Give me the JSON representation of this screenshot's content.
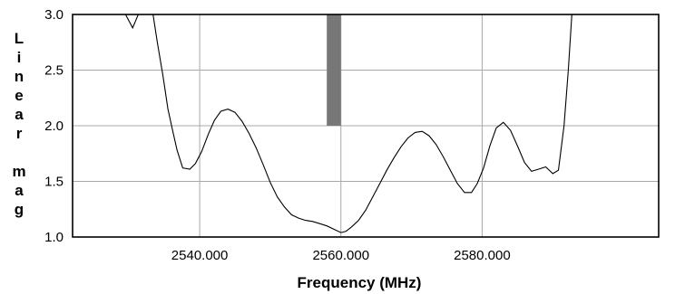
{
  "chart_data": {
    "type": "line",
    "xlabel": "Frequency (MHz)",
    "ylabel": "Linear mag",
    "ylabel_lines": [
      "L",
      "i",
      "n",
      "e",
      "a",
      "r",
      "",
      "m",
      "a",
      "g"
    ],
    "xlim": [
      2522,
      2605
    ],
    "ylim": [
      1.0,
      3.0
    ],
    "grid": true,
    "x_ticks": [
      {
        "value": 2540,
        "label": "2540.000"
      },
      {
        "value": 2560,
        "label": "2560.000"
      },
      {
        "value": 2580,
        "label": "2580.000"
      }
    ],
    "y_ticks": [
      {
        "value": 1.0,
        "label": "1.0"
      },
      {
        "value": 1.5,
        "label": "1.5"
      },
      {
        "value": 2.0,
        "label": "2.0"
      },
      {
        "value": 2.5,
        "label": "2.5"
      },
      {
        "value": 3.0,
        "label": "3.0"
      }
    ],
    "marker_band": {
      "x_start": 2558,
      "x_end": 2560,
      "y_start": 2.0,
      "y_end": 3.0,
      "color": "#777777"
    },
    "line_color": "#000000",
    "series": [
      {
        "segments": [
          [
            [
              2529.5,
              3.0
            ],
            [
              2530.5,
              2.88
            ],
            [
              2531.3,
              3.0
            ]
          ],
          [
            [
              2533.4,
              3.0
            ],
            [
              2534.0,
              2.75
            ],
            [
              2534.8,
              2.45
            ],
            [
              2535.5,
              2.15
            ],
            [
              2536.2,
              1.95
            ],
            [
              2536.8,
              1.78
            ],
            [
              2537.6,
              1.62
            ],
            [
              2538.6,
              1.61
            ],
            [
              2539.4,
              1.66
            ],
            [
              2540.3,
              1.77
            ],
            [
              2541.2,
              1.92
            ],
            [
              2542.1,
              2.05
            ],
            [
              2543.0,
              2.13
            ],
            [
              2544.0,
              2.15
            ],
            [
              2545.0,
              2.12
            ],
            [
              2546.0,
              2.04
            ],
            [
              2547.0,
              1.93
            ],
            [
              2548.0,
              1.8
            ],
            [
              2549.0,
              1.65
            ],
            [
              2550.0,
              1.49
            ],
            [
              2551.0,
              1.36
            ],
            [
              2552.0,
              1.27
            ],
            [
              2553.0,
              1.2
            ],
            [
              2554.0,
              1.17
            ],
            [
              2555.0,
              1.15
            ],
            [
              2556.0,
              1.14
            ],
            [
              2557.0,
              1.12
            ],
            [
              2558.0,
              1.1
            ],
            [
              2559.0,
              1.07
            ],
            [
              2560.0,
              1.04
            ],
            [
              2560.7,
              1.05
            ],
            [
              2561.5,
              1.09
            ],
            [
              2562.5,
              1.15
            ],
            [
              2563.5,
              1.24
            ],
            [
              2564.5,
              1.36
            ],
            [
              2565.5,
              1.48
            ],
            [
              2566.5,
              1.6
            ],
            [
              2567.5,
              1.71
            ],
            [
              2568.5,
              1.81
            ],
            [
              2569.5,
              1.89
            ],
            [
              2570.5,
              1.94
            ],
            [
              2571.5,
              1.95
            ],
            [
              2572.5,
              1.91
            ],
            [
              2573.5,
              1.83
            ],
            [
              2574.5,
              1.72
            ],
            [
              2575.5,
              1.6
            ],
            [
              2576.5,
              1.48
            ],
            [
              2577.5,
              1.4
            ],
            [
              2578.5,
              1.4
            ],
            [
              2579.3,
              1.48
            ],
            [
              2580.2,
              1.62
            ],
            [
              2581.1,
              1.82
            ],
            [
              2582.0,
              1.98
            ],
            [
              2583.0,
              2.03
            ],
            [
              2584.0,
              1.96
            ],
            [
              2585.0,
              1.82
            ],
            [
              2586.0,
              1.67
            ],
            [
              2587.0,
              1.59
            ],
            [
              2588.0,
              1.61
            ],
            [
              2589.0,
              1.63
            ],
            [
              2590.0,
              1.57
            ],
            [
              2590.8,
              1.6
            ],
            [
              2591.6,
              2.0
            ],
            [
              2592.2,
              2.5
            ],
            [
              2592.7,
              3.0
            ]
          ]
        ]
      }
    ]
  }
}
